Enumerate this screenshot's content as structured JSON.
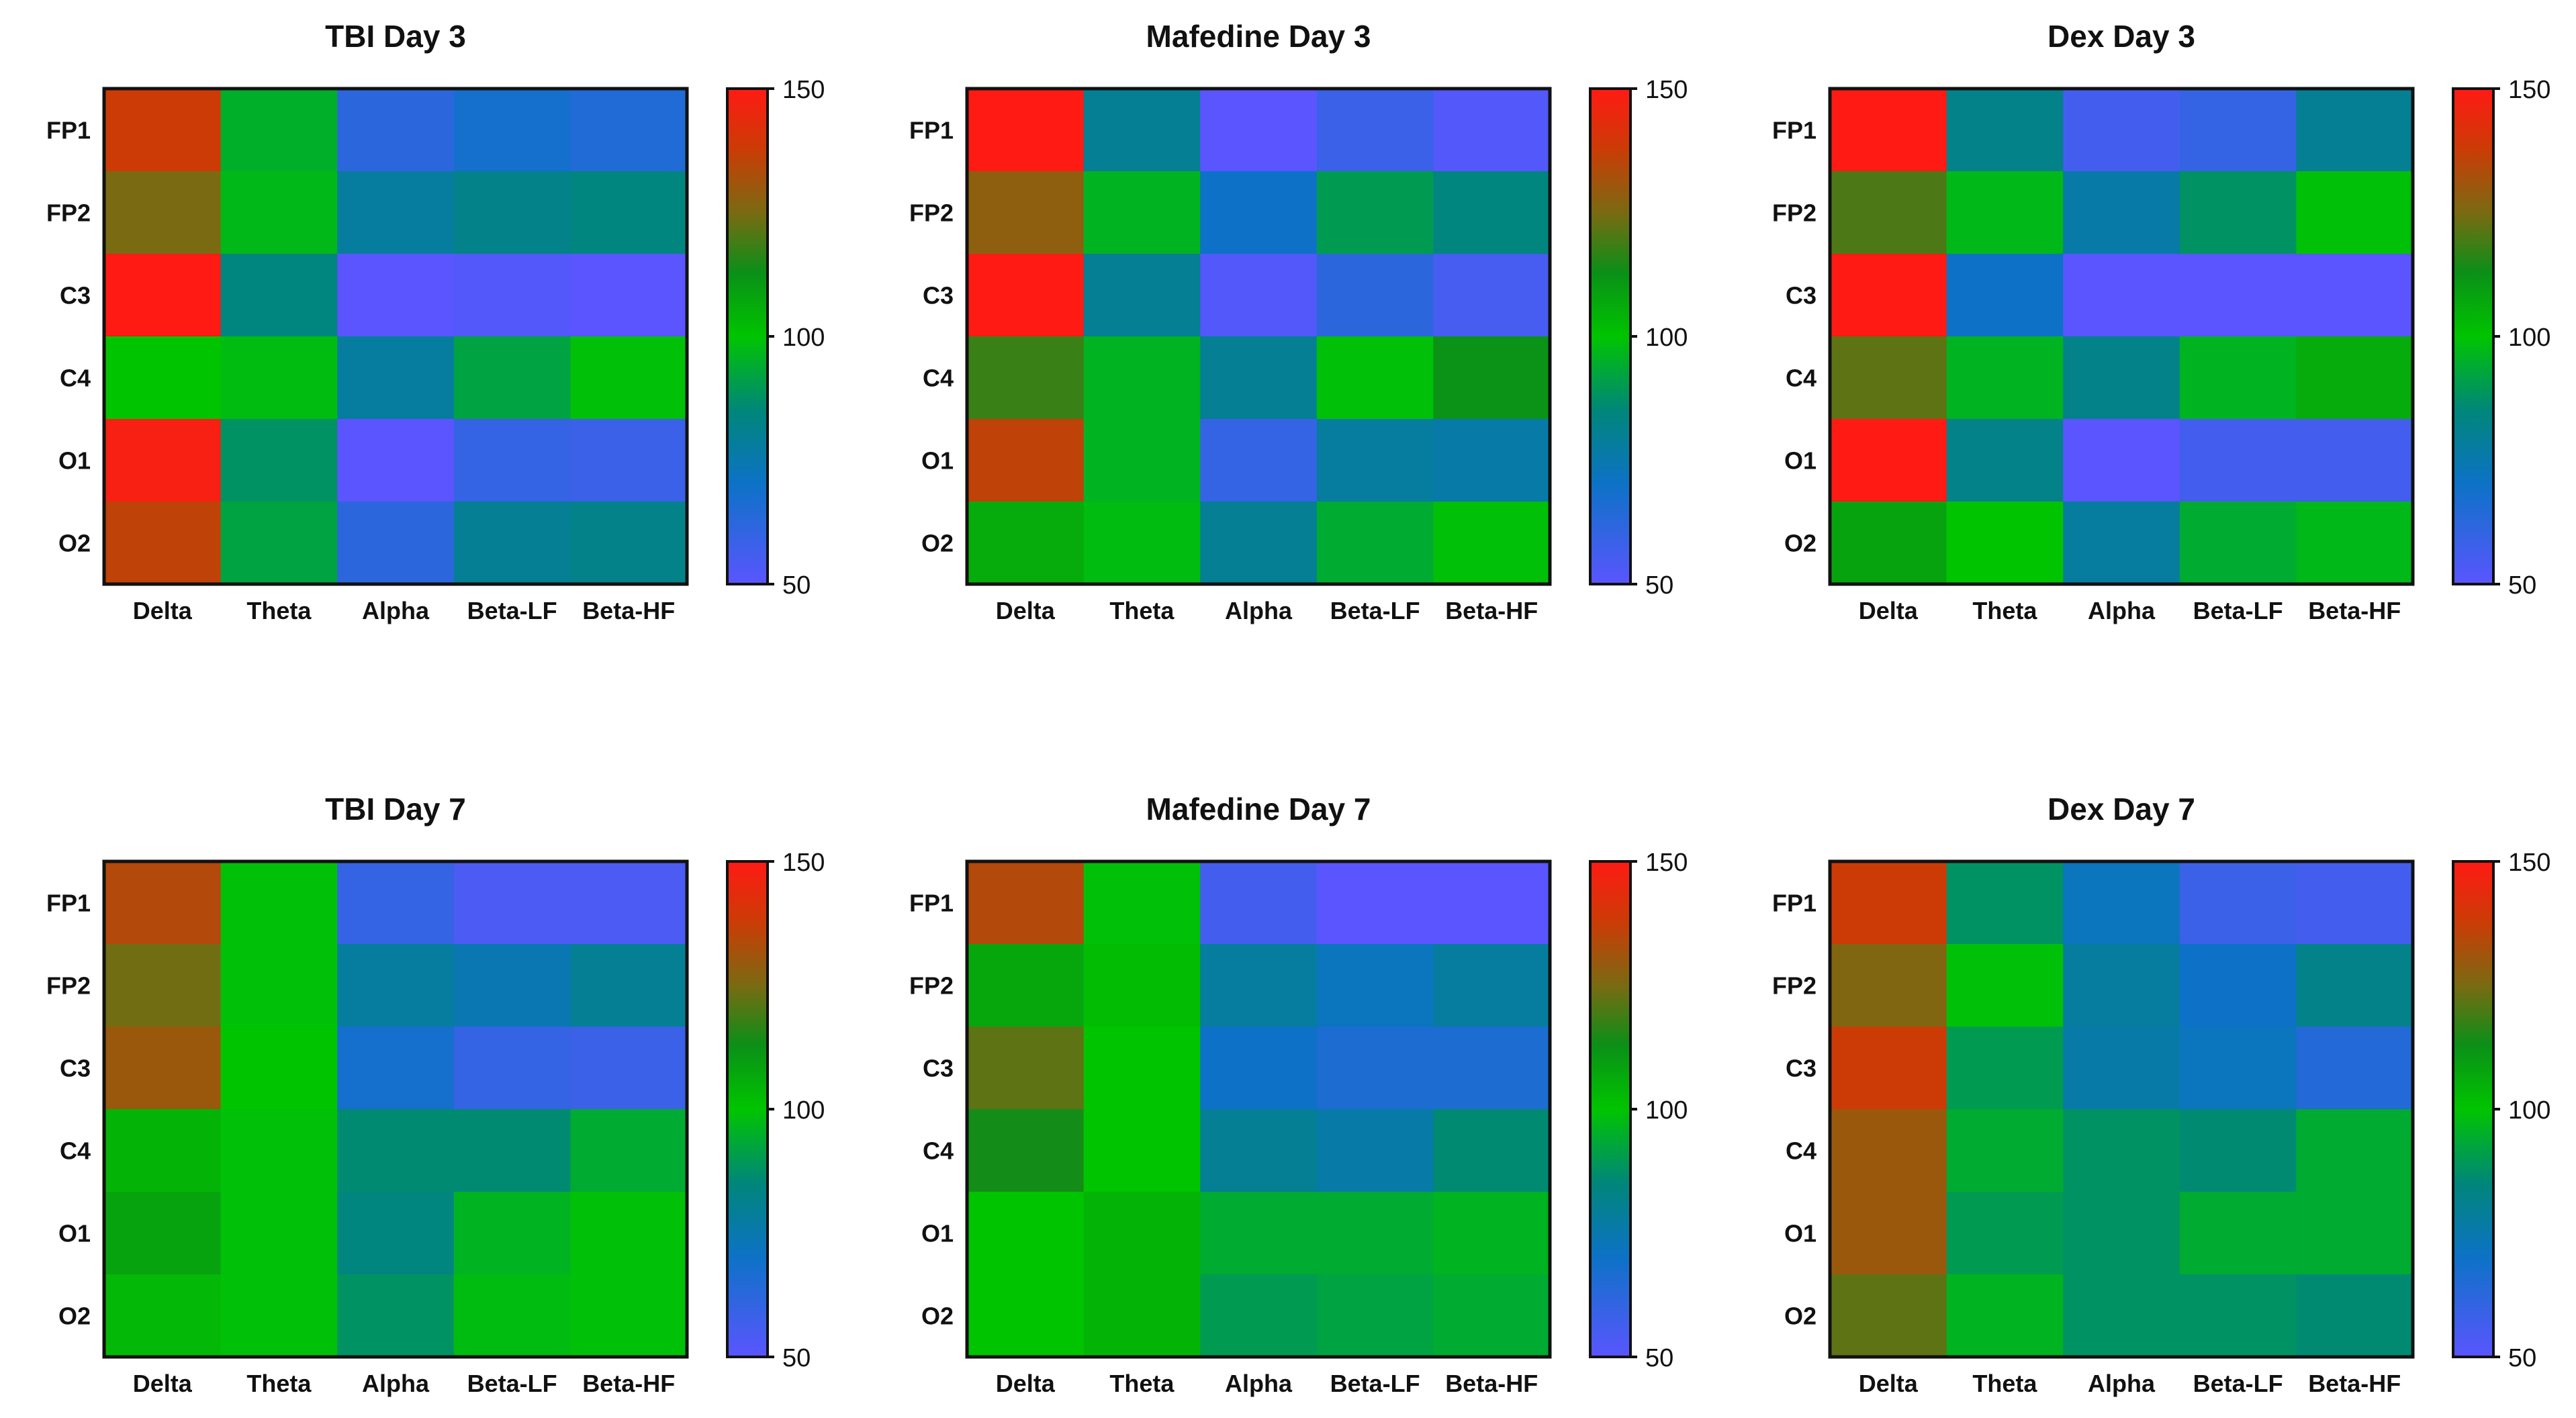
{
  "colormap": {
    "min": 50,
    "max": 150,
    "stops": [
      {
        "value": 50,
        "color": "#5a55ff"
      },
      {
        "value": 70,
        "color": "#0d72c7"
      },
      {
        "value": 85,
        "color": "#00867a"
      },
      {
        "value": 100,
        "color": "#00c400"
      },
      {
        "value": 113,
        "color": "#0b8f18"
      },
      {
        "value": 125,
        "color": "#7a6a12"
      },
      {
        "value": 138,
        "color": "#cc3b06"
      },
      {
        "value": 150,
        "color": "#ff1a14"
      }
    ],
    "ticks": [
      "150",
      "100",
      "50"
    ]
  },
  "chart_data": [
    {
      "type": "heatmap",
      "title": "TBI Day 3",
      "rows": [
        "FP1",
        "FP2",
        "C3",
        "C4",
        "O1",
        "O2"
      ],
      "cols": [
        "Delta",
        "Theta",
        "Alpha",
        "Beta-LF",
        "Beta-HF"
      ],
      "values": [
        [
          138,
          95,
          62,
          68,
          65
        ],
        [
          125,
          97,
          78,
          82,
          84
        ],
        [
          150,
          84,
          50,
          52,
          50
        ],
        [
          100,
          98,
          78,
          92,
          99
        ],
        [
          148,
          88,
          50,
          60,
          58
        ],
        [
          136,
          92,
          62,
          80,
          82
        ]
      ],
      "colorbar": {
        "min": 50,
        "max": 150,
        "ticks": [
          150,
          100,
          50
        ]
      }
    },
    {
      "type": "heatmap",
      "title": "Mafedine Day 3",
      "rows": [
        "FP1",
        "FP2",
        "C3",
        "C4",
        "O1",
        "O2"
      ],
      "cols": [
        "Delta",
        "Theta",
        "Alpha",
        "Beta-LF",
        "Beta-HF"
      ],
      "values": [
        [
          150,
          80,
          50,
          58,
          52
        ],
        [
          128,
          96,
          70,
          90,
          84
        ],
        [
          150,
          80,
          52,
          62,
          55
        ],
        [
          118,
          96,
          80,
          99,
          112
        ],
        [
          136,
          96,
          60,
          78,
          76
        ],
        [
          106,
          98,
          80,
          94,
          99
        ]
      ],
      "colorbar": {
        "min": 50,
        "max": 150,
        "ticks": [
          150,
          100,
          50
        ]
      }
    },
    {
      "type": "heatmap",
      "title": "Dex Day 3",
      "rows": [
        "FP1",
        "FP2",
        "C3",
        "C4",
        "O1",
        "O2"
      ],
      "cols": [
        "Delta",
        "Theta",
        "Alpha",
        "Beta-LF",
        "Beta-HF"
      ],
      "values": [
        [
          150,
          82,
          56,
          60,
          80
        ],
        [
          120,
          97,
          76,
          88,
          99
        ],
        [
          150,
          70,
          50,
          50,
          50
        ],
        [
          122,
          96,
          82,
          96,
          106
        ],
        [
          150,
          82,
          50,
          56,
          56
        ],
        [
          108,
          100,
          78,
          94,
          97
        ]
      ],
      "colorbar": {
        "min": 50,
        "max": 150,
        "ticks": [
          150,
          100,
          50
        ]
      }
    },
    {
      "type": "heatmap",
      "title": "TBI Day 7",
      "rows": [
        "FP1",
        "FP2",
        "C3",
        "C4",
        "O1",
        "O2"
      ],
      "cols": [
        "Delta",
        "Theta",
        "Alpha",
        "Beta-LF",
        "Beta-HF"
      ],
      "values": [
        [
          134,
          99,
          60,
          54,
          54
        ],
        [
          124,
          99,
          78,
          74,
          80
        ],
        [
          130,
          100,
          68,
          60,
          58
        ],
        [
          104,
          99,
          86,
          86,
          94
        ],
        [
          108,
          99,
          84,
          96,
          99
        ],
        [
          103,
          99,
          88,
          98,
          99
        ]
      ],
      "colorbar": {
        "min": 50,
        "max": 150,
        "ticks": [
          150,
          100,
          50
        ]
      }
    },
    {
      "type": "heatmap",
      "title": "Mafedine Day 7",
      "rows": [
        "FP1",
        "FP2",
        "C3",
        "C4",
        "O1",
        "O2"
      ],
      "cols": [
        "Delta",
        "Theta",
        "Alpha",
        "Beta-LF",
        "Beta-HF"
      ],
      "values": [
        [
          134,
          99,
          56,
          50,
          50
        ],
        [
          107,
          102,
          78,
          72,
          78
        ],
        [
          122,
          100,
          70,
          66,
          66
        ],
        [
          114,
          100,
          80,
          76,
          86
        ],
        [
          100,
          104,
          94,
          94,
          96
        ],
        [
          100,
          104,
          90,
          92,
          94
        ]
      ],
      "colorbar": {
        "min": 50,
        "max": 150,
        "ticks": [
          150,
          100,
          50
        ]
      }
    },
    {
      "type": "heatmap",
      "title": "Dex Day 7",
      "rows": [
        "FP1",
        "FP2",
        "C3",
        "C4",
        "O1",
        "O2"
      ],
      "cols": [
        "Delta",
        "Theta",
        "Alpha",
        "Beta-LF",
        "Beta-HF"
      ],
      "values": [
        [
          138,
          88,
          72,
          58,
          56
        ],
        [
          126,
          99,
          78,
          70,
          82
        ],
        [
          138,
          90,
          76,
          72,
          64
        ],
        [
          130,
          94,
          88,
          86,
          94
        ],
        [
          130,
          90,
          88,
          94,
          94
        ],
        [
          122,
          96,
          88,
          88,
          86
        ]
      ],
      "colorbar": {
        "min": 50,
        "max": 150,
        "ticks": [
          150,
          100,
          50
        ]
      }
    }
  ]
}
